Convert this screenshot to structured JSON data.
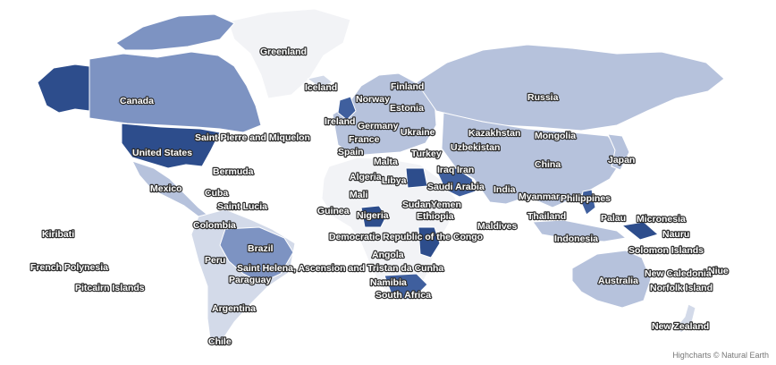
{
  "map": {
    "credits": "Highcharts © Natural Earth",
    "colors": {
      "darkest": "#2d4d8c",
      "dark": "#3f5f9e",
      "medium": "#7d93c2",
      "light": "#b6c2dc",
      "lighter": "#d3dae9",
      "lightest": "#f2f3f6"
    },
    "labels": [
      "Greenland",
      "Iceland",
      "Finland",
      "Norway",
      "Estonia",
      "Russia",
      "Canada",
      "Ireland",
      "Germany",
      "Ukraine",
      "Kazakhstan",
      "Mongolia",
      "France",
      "Uzbekistan",
      "Saint Pierre and Miquelon",
      "United States",
      "Spain",
      "Turkey",
      "Japan",
      "Malta",
      "Iraq",
      "Iran",
      "China",
      "Bermuda",
      "Algeria",
      "Libya",
      "Saudi Arabia",
      "Mexico",
      "Cuba",
      "India",
      "Myanmar",
      "Philippines",
      "Mali",
      "Sudan",
      "Yemen",
      "Saint Lucia",
      "Guinea",
      "Nigeria",
      "Ethiopia",
      "Thailand",
      "Palau",
      "Micronesia",
      "Colombia",
      "Maldives",
      "Nauru",
      "Kiribati",
      "Democratic Republic of the Congo",
      "Indonesia",
      "Solomon Islands",
      "Brazil",
      "Angola",
      "Niue",
      "French Polynesia",
      "Peru",
      "Saint Helena, Ascension and Tristan da Cunha",
      "Australia",
      "New Caledonia",
      "Paraguay",
      "Namibia",
      "Norfolk Island",
      "Pitcairn Islands",
      "South Africa",
      "Argentina",
      "New Zealand",
      "Chile"
    ]
  }
}
